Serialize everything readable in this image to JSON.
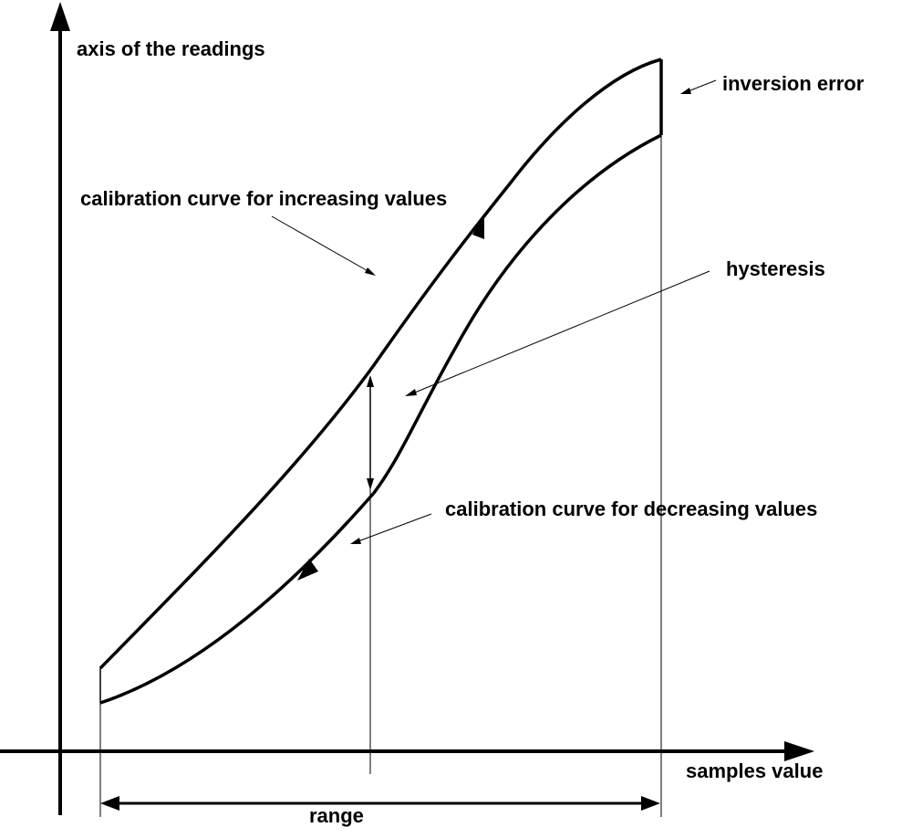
{
  "labels": {
    "y_axis": "axis of the readings",
    "x_axis": "samples value",
    "increasing_curve": "calibration curve for increasing values",
    "decreasing_curve": "calibration curve for decreasing values",
    "hysteresis": "hysteresis",
    "inversion_error": "inversion error",
    "range": "range"
  },
  "colors": {
    "ink": "#000000",
    "background": "#ffffff"
  }
}
